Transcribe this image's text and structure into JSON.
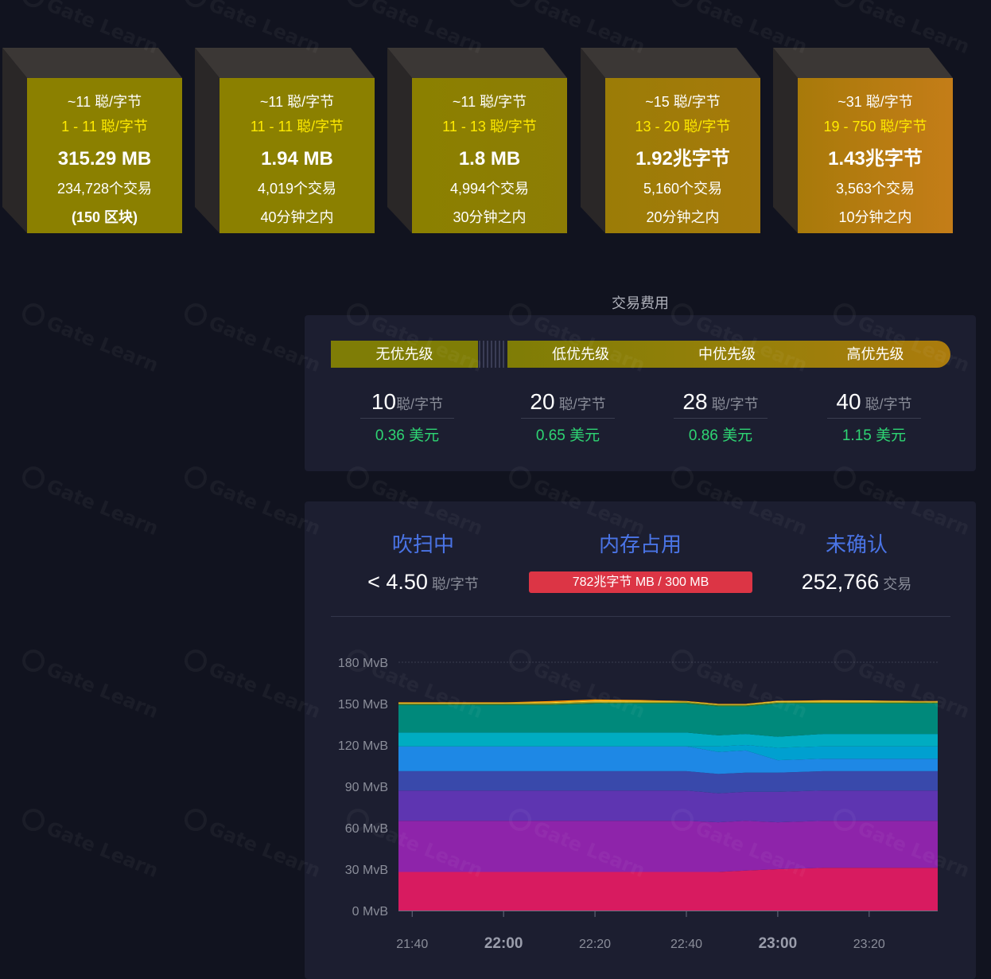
{
  "blocks": [
    {
      "median": "~11 聪/字节",
      "range": "1 - 11 聪/字节",
      "size": "315.29 MB",
      "txs": "234,728个交易",
      "time": "(150 区块)",
      "colors": [
        "#8b8000",
        "#8b8000"
      ]
    },
    {
      "median": "~11 聪/字节",
      "range": "11 - 11 聪/字节",
      "size": "1.94 MB",
      "txs": "4,019个交易",
      "time": "40分钟之内",
      "colors": [
        "#8b8000",
        "#8b8000"
      ]
    },
    {
      "median": "~11 聪/字节",
      "range": "11 - 13 聪/字节",
      "size": "1.8 MB",
      "txs": "4,994个交易",
      "time": "30分钟之内",
      "colors": [
        "#8b8000",
        "#8d7d05"
      ]
    },
    {
      "median": "~15 聪/字节",
      "range": "13 - 20 聪/字节",
      "size": "1.92兆字节",
      "txs": "5,160个交易",
      "time": "20分钟之内",
      "colors": [
        "#9b7c07",
        "#a67a0b"
      ]
    },
    {
      "median": "~31 聪/字节",
      "range": "19 - 750 聪/字节",
      "size": "1.43兆字节",
      "txs": "3,563个交易",
      "time": "10分钟之内",
      "colors": [
        "#a87a0a",
        "#c47d18"
      ]
    }
  ],
  "fees": {
    "title": "交易费用",
    "priorities": [
      "无优先级",
      "低优先级",
      "中优先级",
      "高优先级"
    ],
    "columns": [
      {
        "value": "10",
        "unit": "聪/字节",
        "usd": "0.36 美元"
      },
      {
        "value": "20",
        "unit": " 聪/字节",
        "usd": "0.65 美元"
      },
      {
        "value": "28",
        "unit": " 聪/字节",
        "usd": "0.86 美元"
      },
      {
        "value": "40",
        "unit": " 聪/字节",
        "usd": "1.15 美元"
      }
    ]
  },
  "mempool": {
    "purging_label": "吹扫中",
    "purging_value": "< 4.50",
    "purging_unit": " 聪/字节",
    "memory_label": "内存占用",
    "memory_value": "782兆字节 MB / 300 MB",
    "unconfirmed_label": "未确认",
    "unconfirmed_value": "252,766",
    "unconfirmed_unit": " 交易"
  },
  "watermark": "Gate Learn",
  "chart_data": {
    "type": "area",
    "stacked": true,
    "yunit": "MvB",
    "ylim": [
      0,
      180
    ],
    "yticks": [
      "0 MvB",
      "30 MvB",
      "60 MvB",
      "90 MvB",
      "120 MvB",
      "150 MvB",
      "180 MvB"
    ],
    "xticks": [
      {
        "label": "21:40",
        "bold": false
      },
      {
        "label": "22:00",
        "bold": true
      },
      {
        "label": "22:20",
        "bold": false
      },
      {
        "label": "22:40",
        "bold": false
      },
      {
        "label": "23:00",
        "bold": true
      },
      {
        "label": "23:20",
        "bold": false
      }
    ],
    "x": [
      "21:37",
      "21:50",
      "22:00",
      "22:10",
      "22:20",
      "22:30",
      "22:40",
      "22:47",
      "22:53",
      "23:00",
      "23:10",
      "23:20",
      "23:30",
      "23:35"
    ],
    "series": [
      {
        "color": "#d81b60",
        "values": [
          28,
          28,
          28,
          28,
          28,
          28,
          28,
          28,
          29,
          30,
          31,
          31,
          31,
          31
        ]
      },
      {
        "color": "#8e24aa",
        "values": [
          37,
          37,
          37,
          37,
          37,
          37,
          37,
          36,
          36,
          34,
          34,
          34,
          34,
          34
        ]
      },
      {
        "color": "#5e35b1",
        "values": [
          22,
          22,
          22,
          22,
          22,
          22,
          22,
          21,
          21,
          22,
          22,
          22,
          22,
          22
        ]
      },
      {
        "color": "#3949ab",
        "values": [
          14,
          14,
          14,
          14,
          14,
          14,
          14,
          14,
          14,
          14,
          14,
          14,
          14,
          14
        ]
      },
      {
        "color": "#1e88e5",
        "values": [
          18,
          18,
          18,
          18,
          18,
          18,
          18,
          16,
          16,
          9,
          9,
          9,
          9,
          9
        ]
      },
      {
        "color": "#00a0d0",
        "values": [
          0,
          0,
          0,
          0,
          0,
          0,
          0,
          4,
          4,
          9,
          9,
          9,
          9,
          9
        ]
      },
      {
        "color": "#00acc1",
        "values": [
          10,
          10,
          10,
          10,
          10,
          10,
          10,
          8,
          8,
          8,
          9,
          9,
          9,
          9
        ]
      },
      {
        "color": "#00897b",
        "values": [
          20,
          20,
          20,
          20,
          21,
          21,
          21,
          21,
          20,
          24,
          22,
          22,
          22,
          22
        ]
      },
      {
        "color": "#2e7d32",
        "values": [
          0.6,
          0.6,
          0.6,
          0.6,
          0.6,
          0.6,
          0.6,
          0.6,
          0.6,
          0.6,
          0.6,
          0.6,
          0.6,
          0.6
        ]
      },
      {
        "color": "#9e9d24",
        "values": [
          0.6,
          0.6,
          0.6,
          0.8,
          0.8,
          0.8,
          0.6,
          0.6,
          0.6,
          0.6,
          0.8,
          0.8,
          0.6,
          0.6
        ]
      },
      {
        "color": "#fdd835",
        "values": [
          0.4,
          0.4,
          0.4,
          0.6,
          0.6,
          0.6,
          0.4,
          0.4,
          0.4,
          0.6,
          0.6,
          0.6,
          0.4,
          0.4
        ]
      },
      {
        "color": "#ff9800",
        "values": [
          0.3,
          0.3,
          0.3,
          0.8,
          1.0,
          0.6,
          0.3,
          0.3,
          0.3,
          0.3,
          0.4,
          0.3,
          0.3,
          0.3
        ]
      }
    ]
  }
}
